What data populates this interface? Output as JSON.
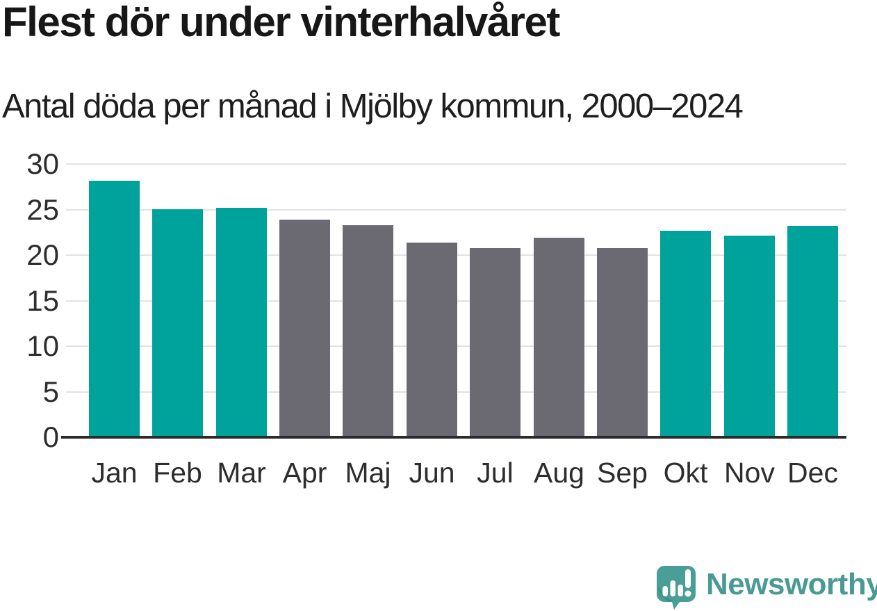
{
  "header": {
    "title": "Flest dör under vinterhalvåret",
    "subtitle": "Antal döda per månad i Mjölby kommun, 2000–2024"
  },
  "branding": {
    "label": "Newsworthy",
    "logo_icon": "newsworthy-speech-bubble-bar-chart-icon",
    "color": "#4A9A94"
  },
  "colors": {
    "winter_bar": "#00A39B",
    "summer_bar": "#6B6A72",
    "gridline": "#E2E2E4",
    "axis": "#2B2B2B",
    "title_text": "#171717",
    "tick_text": "#2D2D2D"
  },
  "chart_data": {
    "type": "bar",
    "title": "Flest dör under vinterhalvåret",
    "subtitle": "Antal döda per månad i Mjölby kommun, 2000–2024",
    "categories": [
      "Jan",
      "Feb",
      "Mar",
      "Apr",
      "Maj",
      "Jun",
      "Jul",
      "Aug",
      "Sep",
      "Okt",
      "Nov",
      "Dec"
    ],
    "values": [
      28.2,
      25.0,
      25.2,
      23.9,
      23.3,
      21.4,
      20.8,
      21.9,
      20.8,
      22.7,
      22.1,
      23.2
    ],
    "bar_groups": [
      "winter",
      "winter",
      "winter",
      "summer",
      "summer",
      "summer",
      "summer",
      "summer",
      "summer",
      "winter",
      "winter",
      "winter"
    ],
    "group_colors": {
      "winter": "#00A39B",
      "summer": "#6B6A72"
    },
    "xlabel": "",
    "ylabel": "",
    "ylim": [
      0,
      30
    ],
    "yticks": [
      0,
      5,
      10,
      15,
      20,
      25,
      30
    ],
    "grid": true,
    "legend": "none"
  }
}
